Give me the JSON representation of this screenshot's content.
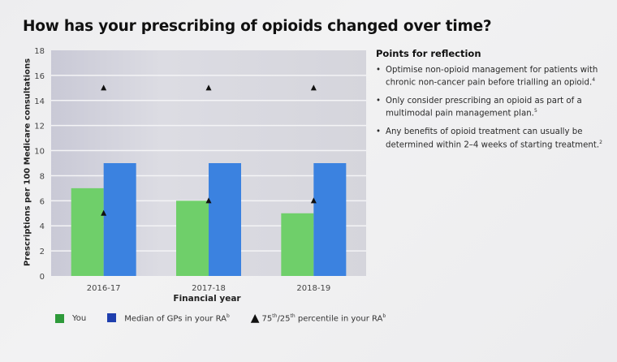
{
  "title": "How has your prescribing of opioids changed over time?",
  "chart_data": {
    "type": "bar",
    "title": "How has your prescribing of opioids changed over time?",
    "xlabel": "Financial year",
    "ylabel": "Prescriptions per 100 Medicare consultations",
    "categories": [
      "2016-17",
      "2017-18",
      "2018-19"
    ],
    "ylim": [
      0,
      18
    ],
    "yticks": [
      0,
      2,
      4,
      6,
      8,
      10,
      12,
      14,
      16,
      18
    ],
    "grid": true,
    "series": [
      {
        "name": "You",
        "color": "#6fcf6a",
        "values": [
          7,
          6,
          5
        ]
      },
      {
        "name": "Median of GPs in your RA",
        "color": "#3b82e0",
        "values": [
          9,
          9,
          9
        ]
      }
    ],
    "markers": {
      "name": "75th/25th percentile in your RA",
      "p75": [
        15,
        15,
        15
      ],
      "p25": [
        5,
        6,
        6
      ]
    },
    "legend_position": "bottom"
  },
  "legend": {
    "you": "You",
    "median": "Median of GPs in your RA",
    "median_sup": "b",
    "percentile_75": "75",
    "percentile_th1": "th",
    "percentile_sep": "/25",
    "percentile_th2": "th",
    "percentile_rest": " percentile in your RA",
    "percentile_sup": "b"
  },
  "panel": {
    "heading": "Points for reflection",
    "bullets": [
      {
        "text": "Optimise non-opioid management for patients with chronic non-cancer pain before trialling an opioid.",
        "ref": "4"
      },
      {
        "text": "Only consider prescribing an opioid as part of a multimodal pain management plan.",
        "ref": "5"
      },
      {
        "text": "Any benefits of opioid treatment can usually be determined within 2–4 weeks of starting treatment.",
        "ref": "2"
      }
    ]
  }
}
